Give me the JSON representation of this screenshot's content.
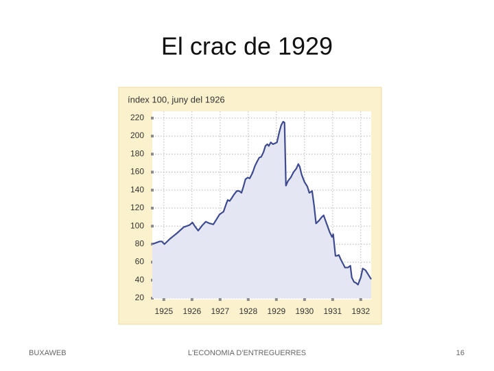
{
  "slide": {
    "title": "El crac de 1929",
    "footer_left": "BUXAWEB",
    "footer_center": "L'ECONOMIA D'ENTREGUERRES",
    "footer_right": "16"
  },
  "chart_data": {
    "type": "line",
    "ylabel": "índex 100, juny del 1926",
    "x": [
      1924.59,
      1924.85,
      1924.93,
      1925.02,
      1925.22,
      1925.46,
      1925.71,
      1925.9,
      1926.02,
      1926.1,
      1926.22,
      1926.37,
      1926.49,
      1926.63,
      1926.76,
      1926.88,
      1926.98,
      1927.07,
      1927.12,
      1927.22,
      1927.27,
      1927.34,
      1927.41,
      1927.49,
      1927.59,
      1927.68,
      1927.76,
      1927.83,
      1927.9,
      1927.98,
      1928.05,
      1928.15,
      1928.24,
      1928.32,
      1928.39,
      1928.46,
      1928.54,
      1928.61,
      1928.68,
      1928.73,
      1928.8,
      1928.88,
      1928.95,
      1929.02,
      1929.1,
      1929.17,
      1929.24,
      1929.29,
      1929.34,
      1929.41,
      1929.51,
      1929.61,
      1929.71,
      1929.78,
      1929.83,
      1929.9,
      1930.0,
      1930.1,
      1930.17,
      1930.27,
      1930.34,
      1930.41,
      1930.51,
      1930.61,
      1930.68,
      1930.76,
      1930.83,
      1930.9,
      1930.98,
      1931.02,
      1931.1,
      1931.15,
      1931.22,
      1931.29,
      1931.39,
      1931.44,
      1931.54,
      1931.63,
      1931.68,
      1931.76,
      1931.83,
      1931.9,
      1932.0,
      1932.07,
      1932.17,
      1932.27,
      1932.37
    ],
    "series": [
      {
        "name": "index",
        "color": "#3d4a8e",
        "fill": "#e4e6f3",
        "values": [
          80,
          83,
          83,
          80,
          86,
          92,
          99,
          101,
          104,
          100,
          95,
          101,
          105,
          103,
          102,
          108,
          113,
          115,
          116,
          125,
          129,
          128,
          131,
          135,
          139,
          139,
          137,
          144,
          152,
          154,
          153,
          159,
          167,
          172,
          176,
          177,
          182,
          189,
          191,
          189,
          193,
          191,
          192,
          193,
          204,
          212,
          216,
          215,
          145,
          150,
          154,
          160,
          164,
          169,
          166,
          157,
          149,
          144,
          137,
          139,
          123,
          103,
          106,
          110,
          112,
          105,
          99,
          93,
          88,
          91,
          67,
          67,
          68,
          63,
          57,
          54,
          54,
          56,
          43,
          38,
          37,
          35,
          43,
          53,
          51,
          46,
          41
        ]
      }
    ],
    "xlim": [
      1924.59,
      1932.37
    ],
    "xticks": [
      1925,
      1926,
      1927,
      1928,
      1929,
      1930,
      1931,
      1932
    ],
    "ylim": [
      20,
      226
    ],
    "yticks": [
      20,
      40,
      60,
      80,
      100,
      120,
      140,
      160,
      180,
      200,
      220
    ],
    "grid": true,
    "background": "#fbf1cc"
  }
}
